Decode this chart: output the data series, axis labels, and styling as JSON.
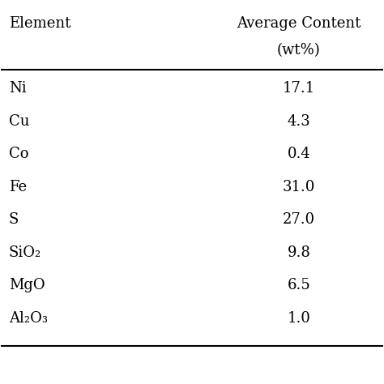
{
  "col1_header": "Element",
  "col2_header": "Average Content",
  "col2_subheader": "(wt%)",
  "rows": [
    [
      "Ni",
      "17.1"
    ],
    [
      "Cu",
      "4.3"
    ],
    [
      "Co",
      "0.4"
    ],
    [
      "Fe",
      "31.0"
    ],
    [
      "S",
      "27.0"
    ],
    [
      "SiO₂",
      "9.8"
    ],
    [
      "MgO",
      "6.5"
    ],
    [
      "Al₂O₃",
      "1.0"
    ]
  ],
  "bg_color": "#ffffff",
  "text_color": "#000000",
  "font_size": 13,
  "header_font_size": 13,
  "line_color": "#000000",
  "fig_width": 4.74,
  "fig_height": 4.74
}
